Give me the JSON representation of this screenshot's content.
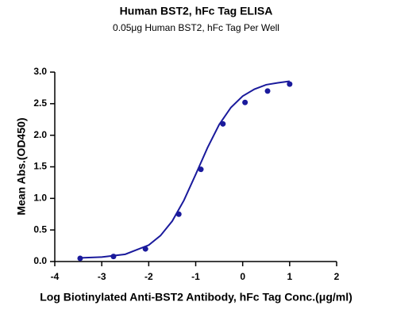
{
  "chart_data": {
    "type": "scatter",
    "title": "Human BST2, hFc Tag ELISA",
    "subtitle": "0.05μg Human BST2, hFc Tag Per Well",
    "x_label": "Log Biotinylated Anti-BST2 Antibody, hFc Tag Conc.(μg/ml)",
    "y_label": "Mean Abs.(OD450)",
    "xlim": [
      -4,
      2
    ],
    "xticks": [
      -4,
      -3,
      -2,
      -1,
      0,
      1,
      2
    ],
    "ylim": [
      0,
      3
    ],
    "yticks": [
      {
        "value": 0,
        "label": "0.0"
      },
      {
        "value": 0.5,
        "label": "0.5"
      },
      {
        "value": 1,
        "label": "1.0"
      },
      {
        "value": 1.5,
        "label": "1.5"
      },
      {
        "value": 2,
        "label": "2.0"
      },
      {
        "value": 2.5,
        "label": "2.5"
      },
      {
        "value": 3,
        "label": "3.0"
      }
    ],
    "series": [
      {
        "type": "line",
        "color": "#1a1a9c",
        "x": [
          -3.5,
          -3,
          -2.5,
          -2,
          -1.75,
          -1.5,
          -1.25,
          -1,
          -0.75,
          -0.5,
          -0.25,
          0,
          0.25,
          0.5,
          0.75,
          1
        ],
        "values": [
          0.056,
          0.07,
          0.115,
          0.26,
          0.41,
          0.64,
          0.97,
          1.38,
          1.8,
          2.17,
          2.44,
          2.62,
          2.73,
          2.8,
          2.83,
          2.855
        ]
      },
      {
        "type": "scatter",
        "color": "#1a1a9c",
        "x": [
          -3.46,
          -2.75,
          -2.07,
          -1.36,
          -0.89,
          -0.42,
          0.05,
          0.53,
          1.0
        ],
        "values": [
          0.05,
          0.08,
          0.2,
          0.75,
          1.46,
          2.18,
          2.52,
          2.7,
          2.81
        ]
      }
    ]
  }
}
